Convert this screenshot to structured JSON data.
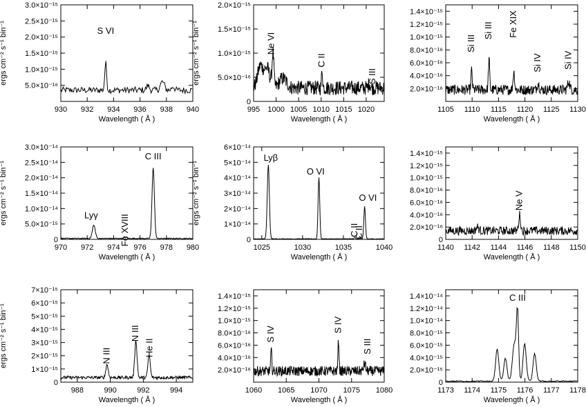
{
  "chart_data": [
    {
      "type": "line",
      "xlabel": "Wavelength ( Å )",
      "ylabel": "ergs cm⁻² s⁻¹ bin⁻¹",
      "xlim": [
        930,
        940
      ],
      "ylim": [
        0,
        3e-15
      ],
      "xticks": [
        930,
        932,
        934,
        936,
        938,
        940
      ],
      "xtick_labels": [
        "930",
        "932",
        "934",
        "936",
        "938",
        "940"
      ],
      "yticks": [
        5e-16,
        1e-15,
        1.5e-15,
        2e-15,
        2.5e-15,
        3e-15
      ],
      "ytick_labels": [
        "5.0×10⁻¹⁶",
        "1.0×10⁻¹⁵",
        "1.5×10⁻¹⁵",
        "2.0×10⁻¹⁵",
        "2.5×10⁻¹⁵",
        "3.0×10⁻¹⁵"
      ],
      "ymin_label": "",
      "baseline": 3.5e-16,
      "noise": 1e-16,
      "peaks": [
        [
          933.4,
          8.5e-16,
          0.07
        ],
        [
          936.6,
          1.5e-16,
          0.1
        ],
        [
          937.7,
          2.6e-16,
          0.15
        ],
        [
          938.5,
          1.2e-16,
          0.1
        ]
      ],
      "step": 0.06,
      "lines": [
        {
          "text": "S VI",
          "x": 933.4,
          "y": 2.1e-15,
          "rotate": false
        }
      ]
    },
    {
      "type": "line",
      "xlabel": "Wavelength ( Å )",
      "ylabel": "ergs cm⁻² s⁻¹ bin⁻¹",
      "xlim": [
        995,
        1024
      ],
      "ylim": [
        0,
        2e-15
      ],
      "xticks": [
        995,
        1000,
        1005,
        1010,
        1015,
        1020
      ],
      "xtick_labels": [
        "995",
        "1000",
        "1005",
        "1010",
        "1015",
        "1020"
      ],
      "yticks": [
        5e-16,
        1e-15,
        1.5e-15,
        2e-15
      ],
      "ytick_labels": [
        "5.0×10⁻¹⁶",
        "1.0×10⁻¹⁵",
        "1.5×10⁻¹⁵",
        "2.0×10⁻¹⁵"
      ],
      "ymin_label": "0",
      "baseline": 2.8e-16,
      "noise": 1.5e-16,
      "peaks": [
        [
          996.5,
          4.5e-16,
          0.6
        ],
        [
          998.0,
          4e-16,
          0.6
        ],
        [
          999.3,
          7e-16,
          0.2
        ],
        [
          1001.5,
          2e-16,
          0.8
        ],
        [
          1010.2,
          3.8e-16,
          0.12
        ],
        [
          1020.7,
          1e-16,
          0.2
        ]
      ],
      "step": 0.08,
      "lines": [
        {
          "text": "Ne VI",
          "x": 999.0,
          "y": 1.2e-15,
          "rotate": true
        },
        {
          "text": "C II",
          "x": 1010.2,
          "y": 8.5e-16,
          "rotate": true
        },
        {
          "text": "S III",
          "x": 1021.5,
          "y": 5.2e-16,
          "rotate": true
        }
      ]
    },
    {
      "type": "line",
      "xlabel": "Wavelength ( Å )",
      "ylabel": "",
      "xlim": [
        1105,
        1130
      ],
      "ylim": [
        0,
        1.5e-15
      ],
      "xticks": [
        1105,
        1110,
        1115,
        1120,
        1125,
        1130
      ],
      "xtick_labels": [
        "1105",
        "1110",
        "1115",
        "1120",
        "1125",
        "1130"
      ],
      "yticks": [
        2e-16,
        4e-16,
        6e-16,
        8e-16,
        1e-15,
        1.2e-15,
        1.4e-15
      ],
      "ytick_labels": [
        "2.0×10⁻¹⁶",
        "4.0×10⁻¹⁶",
        "6.0×10⁻¹⁶",
        "8.0×10⁻¹⁶",
        "1.0×10⁻¹⁵",
        "1.2×10⁻¹⁵",
        "1.4×10⁻¹⁵"
      ],
      "ymin_label": "",
      "baseline": 1.8e-16,
      "noise": 8e-17,
      "peaks": [
        [
          1109.9,
          3e-16,
          0.12
        ],
        [
          1113.2,
          4.8e-16,
          0.12
        ],
        [
          1117.9,
          2.8e-16,
          0.15
        ],
        [
          1122.5,
          1e-16,
          0.2
        ],
        [
          1128.3,
          1.3e-16,
          0.2
        ]
      ],
      "step": 0.07,
      "lines": [
        {
          "text": "Si III",
          "x": 1109.9,
          "y": 9e-16,
          "rotate": true
        },
        {
          "text": "Si III",
          "x": 1113.2,
          "y": 1.1e-15,
          "rotate": true
        },
        {
          "text": "Fe XIX",
          "x": 1117.9,
          "y": 1.2e-15,
          "rotate": true
        },
        {
          "text": "Si IV",
          "x": 1122.5,
          "y": 6e-16,
          "rotate": true
        },
        {
          "text": "Si IV",
          "x": 1128.3,
          "y": 6.4e-16,
          "rotate": true
        }
      ]
    },
    {
      "type": "line",
      "xlabel": "Wavelength ( Å )",
      "ylabel": "ergs cm⁻² s⁻¹ bin⁻¹",
      "xlim": [
        970,
        980
      ],
      "ylim": [
        0,
        3e-14
      ],
      "xticks": [
        970,
        972,
        974,
        976,
        978,
        980
      ],
      "xtick_labels": [
        "970",
        "972",
        "974",
        "976",
        "978",
        "980"
      ],
      "yticks": [
        5e-15,
        1e-14,
        1.5e-14,
        2e-14,
        2.5e-14,
        3e-14
      ],
      "ytick_labels": [
        "5.0×10⁻¹⁵",
        "1.0×10⁻¹⁴",
        "1.5×10⁻¹⁴",
        "2.0×10⁻¹⁴",
        "2.5×10⁻¹⁴",
        "3.0×10⁻¹⁴"
      ],
      "ymin_label": "0",
      "baseline": 3e-16,
      "noise": 1.5e-16,
      "peaks": [
        [
          972.5,
          4.3e-15,
          0.11
        ],
        [
          974.9,
          4e-16,
          0.1
        ],
        [
          977.0,
          2.3e-14,
          0.09
        ]
      ],
      "step": 0.035,
      "lines": [
        {
          "text": "Lyγ",
          "x": 972.3,
          "y": 6.8e-15,
          "rotate": false
        },
        {
          "text": "Fe XVIII",
          "x": 974.9,
          "y": 3e-15,
          "rotate": true
        },
        {
          "text": "C III",
          "x": 977.0,
          "y": 2.6e-14,
          "rotate": false
        }
      ]
    },
    {
      "type": "line",
      "xlabel": "Wavelength ( Å )",
      "ylabel": "ergs cm⁻² s⁻¹ bin⁻¹",
      "xlim": [
        1024,
        1040
      ],
      "ylim": [
        0,
        6e-14
      ],
      "xticks": [
        1025,
        1030,
        1035,
        1040
      ],
      "xtick_labels": [
        "1025",
        "1030",
        "1035",
        "1040"
      ],
      "yticks": [
        1e-14,
        2e-14,
        3e-14,
        4e-14,
        5e-14,
        6e-14
      ],
      "ytick_labels": [
        "1×10⁻¹⁴",
        "2×10⁻¹⁴",
        "3×10⁻¹⁴",
        "4×10⁻¹⁴",
        "5×10⁻¹⁴",
        "6×10⁻¹⁴"
      ],
      "ymin_label": "0",
      "baseline": 3e-16,
      "noise": 2e-16,
      "peaks": [
        [
          1025.8,
          4.8e-14,
          0.13
        ],
        [
          1032.0,
          4e-14,
          0.1
        ],
        [
          1036.4,
          1e-15,
          0.08
        ],
        [
          1037.0,
          1.4e-15,
          0.08
        ],
        [
          1037.6,
          2.1e-14,
          0.1
        ]
      ],
      "step": 0.05,
      "lines": [
        {
          "text": "Lyβ",
          "x": 1026.1,
          "y": 5.1e-14,
          "rotate": false
        },
        {
          "text": "O VI",
          "x": 1031.6,
          "y": 4.2e-14,
          "rotate": false
        },
        {
          "text": "C II",
          "x": 1036.4,
          "y": 6e-15,
          "rotate": true
        },
        {
          "text": "C II",
          "x": 1037.0,
          "y": 4.5e-15,
          "rotate": true
        },
        {
          "text": "O VI",
          "x": 1038.0,
          "y": 2.5e-14,
          "rotate": false
        }
      ]
    },
    {
      "type": "line",
      "xlabel": "Wavelength ( Å )",
      "ylabel": "",
      "xlim": [
        1140,
        1150
      ],
      "ylim": [
        0,
        1.5e-15
      ],
      "xticks": [
        1140,
        1142,
        1144,
        1146,
        1148,
        1150
      ],
      "xtick_labels": [
        "1140",
        "1142",
        "1144",
        "1146",
        "1148",
        "1150"
      ],
      "yticks": [
        2e-16,
        4e-16,
        6e-16,
        8e-16,
        1e-15,
        1.2e-15,
        1.4e-15
      ],
      "ytick_labels": [
        "2.0×10⁻¹⁶",
        "4.0×10⁻¹⁶",
        "6.0×10⁻¹⁶",
        "8.0×10⁻¹⁶",
        "1.0×10⁻¹⁵",
        "1.2×10⁻¹⁵",
        "1.4×10⁻¹⁵"
      ],
      "ymin_label": "0",
      "baseline": 1.4e-16,
      "noise": 7e-17,
      "peaks": [
        [
          1145.6,
          2.6e-16,
          0.07
        ],
        [
          1142.4,
          6e-17,
          0.1
        ]
      ],
      "step": 0.035,
      "lines": [
        {
          "text": "Ne V",
          "x": 1145.6,
          "y": 6.3e-16,
          "rotate": true
        }
      ]
    },
    {
      "type": "line",
      "xlabel": "Wavelength ( Å )",
      "ylabel": "ergs cm⁻² s⁻¹ bin⁻¹",
      "xlim": [
        987,
        995
      ],
      "ylim": [
        0,
        7e-15
      ],
      "xticks": [
        988,
        990,
        992,
        994
      ],
      "xtick_labels": [
        "988",
        "990",
        "992",
        "994"
      ],
      "yticks": [
        1e-15,
        2e-15,
        3e-15,
        4e-15,
        5e-15,
        6e-15,
        7e-15
      ],
      "ytick_labels": [
        "1×10⁻¹⁵",
        "2×10⁻¹⁵",
        "3×10⁻¹⁵",
        "4×10⁻¹⁵",
        "5×10⁻¹⁵",
        "6×10⁻¹⁵",
        "7×10⁻¹⁵"
      ],
      "ymin_label": "0",
      "baseline": 3.5e-16,
      "noise": 1.2e-16,
      "peaks": [
        [
          989.8,
          1e-15,
          0.07
        ],
        [
          991.55,
          2.8e-15,
          0.07
        ],
        [
          992.35,
          1.7e-15,
          0.07
        ]
      ],
      "step": 0.028,
      "lines": [
        {
          "text": "N III",
          "x": 989.8,
          "y": 2e-15,
          "rotate": true
        },
        {
          "text": "N III",
          "x": 991.55,
          "y": 3.7e-15,
          "rotate": true
        },
        {
          "text": "He II",
          "x": 992.4,
          "y": 2.6e-15,
          "rotate": true
        }
      ]
    },
    {
      "type": "line",
      "xlabel": "Wavelength ( Å )",
      "ylabel": "",
      "xlim": [
        1060,
        1080
      ],
      "ylim": [
        0,
        1.5e-15
      ],
      "xticks": [
        1060,
        1065,
        1070,
        1075,
        1080
      ],
      "xtick_labels": [
        "1060",
        "1065",
        "1070",
        "1075",
        "1080"
      ],
      "yticks": [
        2e-16,
        4e-16,
        6e-16,
        8e-16,
        1e-15,
        1.2e-15,
        1.4e-15
      ],
      "ytick_labels": [
        "2.0×10⁻¹⁶",
        "4.0×10⁻¹⁶",
        "6.0×10⁻¹⁶",
        "8.0×10⁻¹⁶",
        "1.0×10⁻¹⁵",
        "1.2×10⁻¹⁵",
        "1.4×10⁻¹⁵"
      ],
      "ymin_label": "",
      "baseline": 1.8e-16,
      "noise": 8e-17,
      "peaks": [
        [
          1062.7,
          3.4e-16,
          0.08
        ],
        [
          1073.0,
          5.2e-16,
          0.08
        ],
        [
          1077.0,
          1.2e-16,
          0.15
        ]
      ],
      "step": 0.05,
      "lines": [
        {
          "text": "S IV",
          "x": 1062.7,
          "y": 7.8e-16,
          "rotate": true
        },
        {
          "text": "S IV",
          "x": 1073.0,
          "y": 9.3e-16,
          "rotate": true
        },
        {
          "text": "S III",
          "x": 1077.5,
          "y": 5.8e-16,
          "rotate": true
        }
      ]
    },
    {
      "type": "line",
      "xlabel": "Wavelength ( Å )",
      "ylabel": "",
      "xlim": [
        1173,
        1178
      ],
      "ylim": [
        0,
        1.5e-14
      ],
      "xticks": [
        1173,
        1174,
        1175,
        1176,
        1177,
        1178
      ],
      "xtick_labels": [
        "1173",
        "1174",
        "1175",
        "1176",
        "1177",
        "1178"
      ],
      "yticks": [
        2e-15,
        4e-15,
        6e-15,
        8e-15,
        1e-14,
        1.2e-14,
        1.4e-14
      ],
      "ytick_labels": [
        "2.0×10⁻¹⁵",
        "4.0×10⁻¹⁵",
        "6.0×10⁻¹⁵",
        "8.0×10⁻¹⁵",
        "1.0×10⁻¹⁴",
        "1.2×10⁻¹⁴",
        "1.4×10⁻¹⁴"
      ],
      "ymin_label": "0",
      "baseline": 1.5e-16,
      "noise": 1e-16,
      "peaks": [
        [
          1174.95,
          5.2e-15,
          0.06
        ],
        [
          1175.26,
          3.8e-15,
          0.06
        ],
        [
          1175.6,
          6.2e-15,
          0.07
        ],
        [
          1175.72,
          1.1e-14,
          0.04
        ],
        [
          1175.99,
          6.2e-15,
          0.06
        ],
        [
          1176.37,
          4.5e-15,
          0.06
        ]
      ],
      "step": 0.03,
      "lines": [
        {
          "text": "C III",
          "x": 1175.72,
          "y": 1.32e-14,
          "rotate": false
        }
      ]
    }
  ]
}
